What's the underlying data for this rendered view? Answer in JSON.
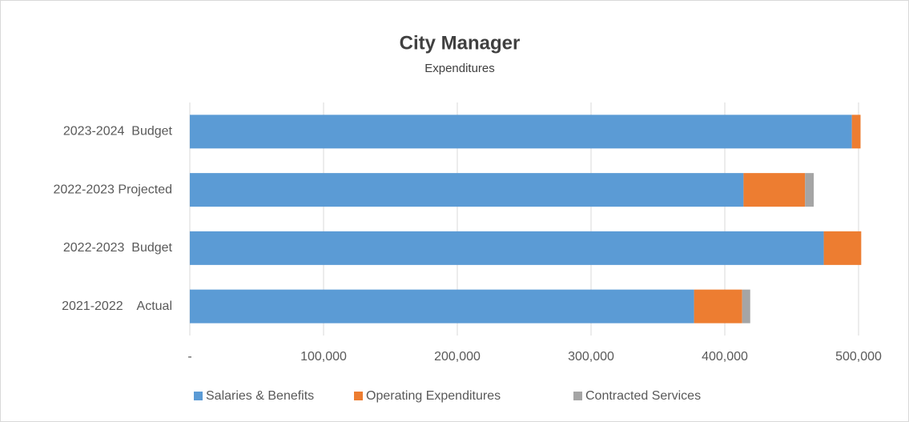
{
  "chart_data": {
    "type": "stacked-barh",
    "title": "City Manager",
    "subtitle": "Expenditures",
    "categories": [
      "2023-2024  Budget",
      "2022-2023 Projected",
      "2022-2023  Budget",
      "2021-2022    Actual"
    ],
    "series": [
      {
        "name": "Salaries & Benefits",
        "color": "#5b9bd5",
        "values": [
          495000,
          414000,
          474000,
          377000
        ]
      },
      {
        "name": "Operating Expenditures",
        "color": "#ed7d31",
        "values": [
          6500,
          46000,
          28000,
          36000
        ]
      },
      {
        "name": "Contracted Services",
        "color": "#a5a5a5",
        "values": [
          0,
          6500,
          0,
          6000
        ]
      }
    ],
    "xlim": [
      0,
      500000
    ],
    "xticks": [
      {
        "value": 0,
        "label": "-"
      },
      {
        "value": 100000,
        "label": "100,000"
      },
      {
        "value": 200000,
        "label": "200,000"
      },
      {
        "value": 300000,
        "label": "300,000"
      },
      {
        "value": 400000,
        "label": "400,000"
      },
      {
        "value": 500000,
        "label": "500,000"
      }
    ],
    "grid": true,
    "legend": "bottom"
  }
}
